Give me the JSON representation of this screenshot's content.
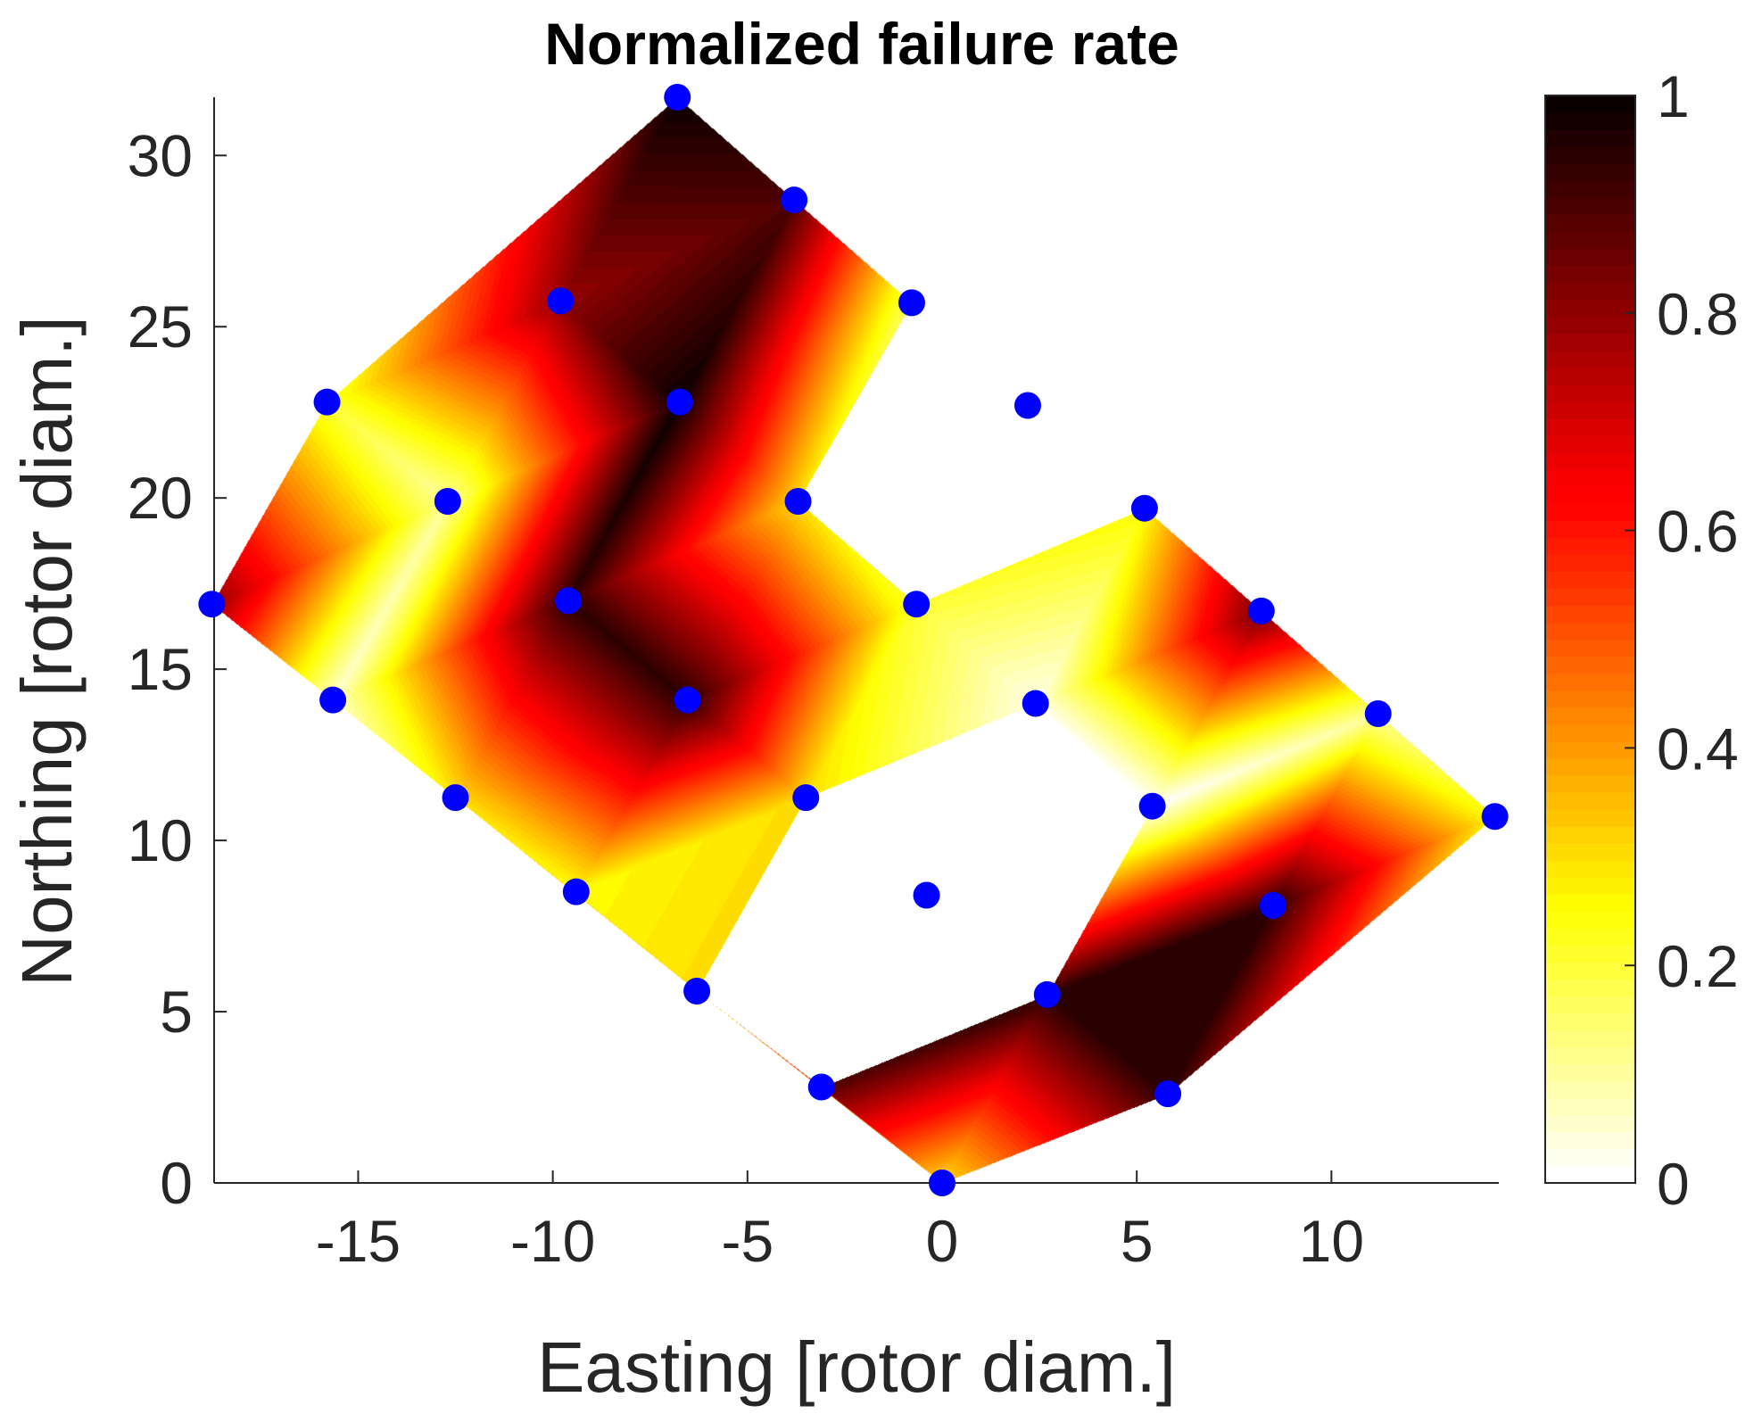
{
  "chart_data": {
    "type": "heatmap",
    "title": "Normalized failure rate",
    "xlabel": "Easting [rotor diam.]",
    "ylabel": "Northing [rotor diam.]",
    "xlim": [
      -18.7,
      14.3
    ],
    "ylim": [
      0,
      31.7
    ],
    "xticks": [
      -15,
      -10,
      -5,
      0,
      5,
      10
    ],
    "xtick_labels": [
      "-15",
      "-10",
      "-5",
      "0",
      "5",
      "10"
    ],
    "yticks": [
      0,
      5,
      10,
      15,
      20,
      25,
      30
    ],
    "ytick_labels": [
      "0",
      "5",
      "10",
      "15",
      "20",
      "25",
      "30"
    ],
    "colorbar": {
      "colormap": "hot (reversed)",
      "range": [
        0,
        1
      ],
      "ticks": [
        0,
        0.2,
        0.4,
        0.6,
        0.8,
        1
      ],
      "tick_labels": [
        "0",
        "0.2",
        "0.4",
        "0.6",
        "0.8",
        "1"
      ]
    },
    "grid": false,
    "marker_color": "#0000ff",
    "turbines": [
      {
        "x": -6.8,
        "y": 31.7,
        "value": 1.0
      },
      {
        "x": -3.8,
        "y": 28.7,
        "value": 0.9
      },
      {
        "x": -9.8,
        "y": 25.75,
        "value": 0.8
      },
      {
        "x": -0.78,
        "y": 25.7,
        "value": 0.15
      },
      {
        "x": -15.8,
        "y": 22.8,
        "value": 0.2
      },
      {
        "x": -6.74,
        "y": 22.8,
        "value": 1.0
      },
      {
        "x": 2.2,
        "y": 22.7,
        "value": null
      },
      {
        "x": -12.7,
        "y": 19.9,
        "value": 0.1
      },
      {
        "x": -3.7,
        "y": 19.9,
        "value": 0.3
      },
      {
        "x": 5.2,
        "y": 19.7,
        "value": 0.25
      },
      {
        "x": -18.76,
        "y": 16.9,
        "value": 0.8
      },
      {
        "x": -9.6,
        "y": 17.0,
        "value": 0.95
      },
      {
        "x": -0.66,
        "y": 16.9,
        "value": 0.2
      },
      {
        "x": 8.2,
        "y": 16.7,
        "value": 0.85
      },
      {
        "x": -15.65,
        "y": 14.1,
        "value": 0.05
      },
      {
        "x": -6.54,
        "y": 14.1,
        "value": 0.95
      },
      {
        "x": 2.4,
        "y": 14.0,
        "value": 0.02
      },
      {
        "x": 11.2,
        "y": 13.7,
        "value": 0.1
      },
      {
        "x": -12.5,
        "y": 11.25,
        "value": 0.3
      },
      {
        "x": -3.5,
        "y": 11.25,
        "value": 0.3
      },
      {
        "x": 5.4,
        "y": 11.0,
        "value": 0.0
      },
      {
        "x": 14.2,
        "y": 10.7,
        "value": 0.25
      },
      {
        "x": -9.4,
        "y": 8.5,
        "value": 0.25
      },
      {
        "x": -0.4,
        "y": 8.4,
        "value": null
      },
      {
        "x": 8.5,
        "y": 8.1,
        "value": 0.95
      },
      {
        "x": -6.3,
        "y": 5.6,
        "value": 0.3
      },
      {
        "x": 2.7,
        "y": 5.5,
        "value": 0.95
      },
      {
        "x": -3.1,
        "y": 2.8,
        "value": 0.9
      },
      {
        "x": 5.8,
        "y": 2.6,
        "value": 0.95
      },
      {
        "x": 0.0,
        "y": 0.0,
        "value": 0.3
      }
    ]
  }
}
